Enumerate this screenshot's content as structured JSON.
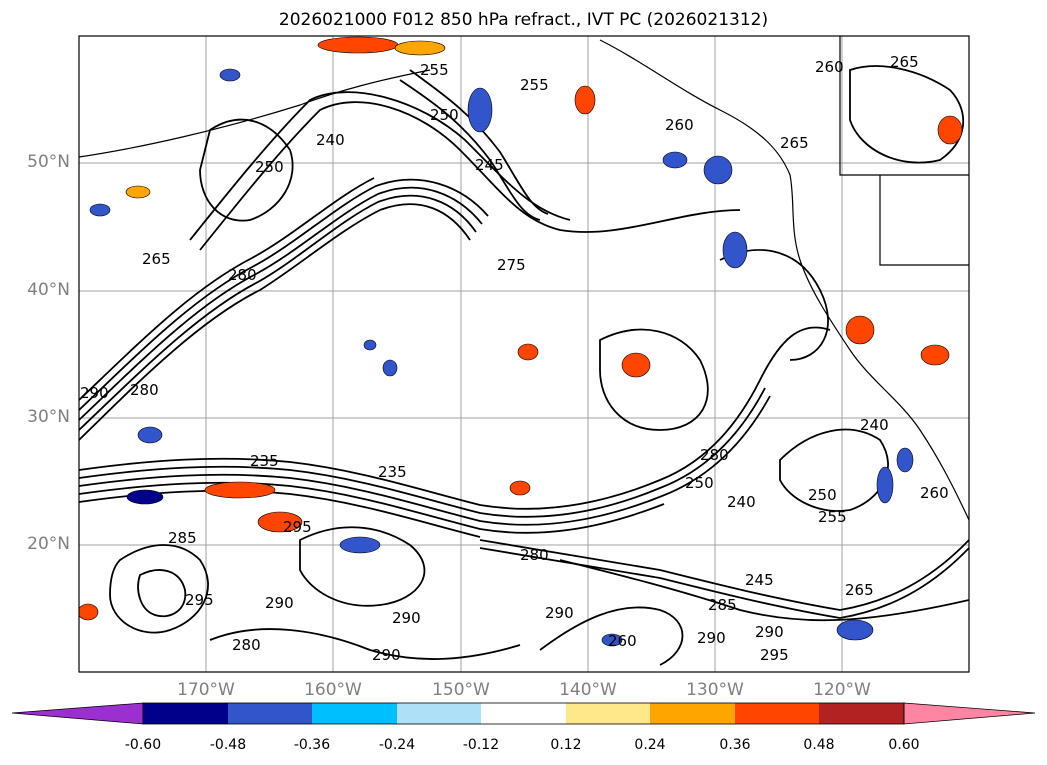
{
  "title": "2026021000 F012 850 hPa refract., IVT PC (2026021312)",
  "lat_labels": [
    "50°N",
    "40°N",
    "30°N",
    "20°N"
  ],
  "lon_labels": [
    "170°W",
    "160°W",
    "150°W",
    "140°W",
    "130°W",
    "120°W"
  ],
  "contour_labels": [
    "255",
    "265",
    "260",
    "250",
    "240",
    "255",
    "260",
    "250",
    "245",
    "275",
    "265",
    "280",
    "265",
    "235",
    "280",
    "290",
    "235",
    "295",
    "285",
    "280",
    "280",
    "250",
    "240",
    "255",
    "250",
    "240",
    "260",
    "245",
    "290",
    "295",
    "290",
    "290",
    "260",
    "285",
    "295",
    "290",
    "290",
    "280",
    "265",
    "290"
  ],
  "colorbar": {
    "ticks": [
      "-0.60",
      "-0.48",
      "-0.36",
      "-0.24",
      "-0.12",
      "0.12",
      "0.24",
      "0.36",
      "0.48",
      "0.60"
    ],
    "colors": [
      "#9b30d0",
      "#00008b",
      "#3355cc",
      "#00bfff",
      "#aee0f8",
      "#ffffff",
      "#ffe88a",
      "#ffa500",
      "#ff4500",
      "#b22222",
      "#ff85a2"
    ]
  }
}
